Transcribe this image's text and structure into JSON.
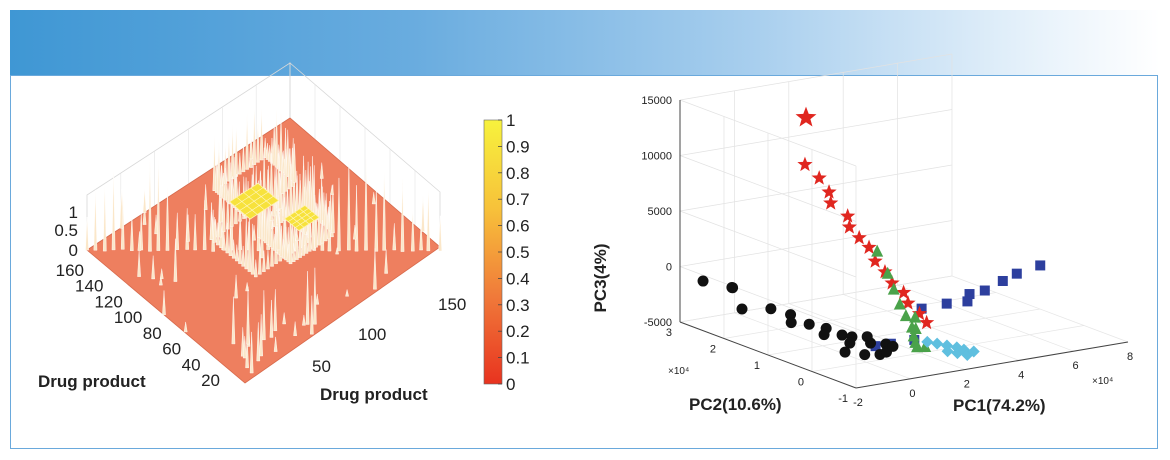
{
  "chart_data": [
    {
      "type": "heatmap",
      "style": "3d-surface",
      "x_axis_label": "Drug product",
      "y_axis_label": "Drug product",
      "x_ticks": [
        "50",
        "100",
        "150"
      ],
      "y_ticks": [
        "20",
        "40",
        "60",
        "80",
        "100",
        "120",
        "140",
        "160"
      ],
      "z_ticks": [
        "0",
        "0.5",
        "1"
      ],
      "zlim": [
        0,
        1
      ],
      "colorbar": {
        "ticks": [
          "0",
          "0.1",
          "0.2",
          "0.3",
          "0.4",
          "0.5",
          "0.6",
          "0.7",
          "0.8",
          "0.9",
          "1"
        ],
        "range": [
          0,
          1
        ],
        "colors": [
          "#e8331f",
          "#f07a3a",
          "#f7c23a",
          "#f7f23d"
        ]
      },
      "base_color": "#ee7f5f",
      "peak_color": "#fbe7c9",
      "block_color": "#f7e23c"
    },
    {
      "type": "scatter",
      "style": "3d",
      "x_axis_label": "PC1(74.2%)",
      "y_axis_label": "PC2(10.6%)",
      "z_axis_label": "PC3(4%)",
      "x_ticks": [
        "-2",
        "0",
        "2",
        "4",
        "6",
        "8"
      ],
      "y_ticks": [
        "-1",
        "0",
        "1",
        "2",
        "3"
      ],
      "z_ticks": [
        "-5000",
        "0",
        "5000",
        "10000",
        "15000"
      ],
      "x_exponent": "×10⁴",
      "y_exponent": "×10⁴",
      "xlim": [
        -2,
        8
      ],
      "ylim": [
        -1,
        3
      ],
      "zlim": [
        -5000,
        15000
      ],
      "series": [
        {
          "marker": "square",
          "color": "#2d3f9e",
          "points": [
            [
              7.2,
              0.5,
              0
            ],
            [
              6.5,
              0.6,
              -600
            ],
            [
              5.5,
              0.3,
              -400
            ],
            [
              5.0,
              0.4,
              -1200
            ],
            [
              4.6,
              0.5,
              -1500
            ],
            [
              4.2,
              0.3,
              -1700
            ],
            [
              3.6,
              0.4,
              -1800
            ],
            [
              3.0,
              0.6,
              -2300
            ],
            [
              1.6,
              -0.1,
              -3500
            ],
            [
              0.9,
              0.0,
              -3700
            ],
            [
              0.5,
              0.1,
              -3900
            ]
          ]
        },
        {
          "marker": "circle",
          "color": "#111111",
          "points": [
            [
              -1.8,
              2.6,
              -800
            ],
            [
              -1.2,
              2.3,
              -1200
            ],
            [
              -0.9,
              2.5,
              -1600
            ],
            [
              -1.5,
              1.9,
              -2400
            ],
            [
              -0.6,
              1.8,
              -2600
            ],
            [
              -0.2,
              1.6,
              -3000
            ],
            [
              -0.5,
              1.4,
              -3300
            ],
            [
              0.0,
              1.3,
              -3500
            ],
            [
              0.3,
              1.1,
              -3700
            ],
            [
              -0.1,
              0.9,
              -3800
            ],
            [
              0.4,
              0.8,
              -3900
            ],
            [
              0.6,
              0.7,
              -4000
            ],
            [
              0.2,
              0.5,
              -4100
            ],
            [
              0.8,
              0.4,
              -4200
            ],
            [
              1.0,
              0.6,
              -4000
            ],
            [
              1.2,
              0.3,
              -4300
            ],
            [
              -0.3,
              0.3,
              -4400
            ],
            [
              0.1,
              0.1,
              -4500
            ],
            [
              0.5,
              0.0,
              -4500
            ],
            [
              0.9,
              0.1,
              -4600
            ],
            [
              1.3,
              0.2,
              -4400
            ]
          ]
        },
        {
          "marker": "star",
          "color": "#e0261f",
          "points": [
            [
              1.5,
              2.3,
              13000
            ],
            [
              1.3,
              2.2,
              9000
            ],
            [
              1.5,
              2.0,
              8000
            ],
            [
              1.7,
              1.9,
              6800
            ],
            [
              1.6,
              1.8,
              6000
            ],
            [
              1.9,
              1.6,
              5000
            ],
            [
              1.8,
              1.5,
              4200
            ],
            [
              2.0,
              1.4,
              3300
            ],
            [
              2.2,
              1.3,
              2500
            ],
            [
              2.1,
              1.1,
              1600
            ],
            [
              2.3,
              1.0,
              700
            ],
            [
              2.4,
              0.9,
              -200
            ],
            [
              2.5,
              0.7,
              -800
            ],
            [
              2.5,
              0.6,
              -1600
            ],
            [
              2.6,
              0.4,
              -2300
            ],
            [
              2.7,
              0.3,
              -3000
            ]
          ]
        },
        {
          "marker": "triangle",
          "color": "#4aa24a",
          "points": [
            [
              2.5,
              1.3,
              2000
            ],
            [
              2.4,
              1.0,
              500
            ],
            [
              2.3,
              0.8,
              -600
            ],
            [
              2.2,
              0.6,
              -1600
            ],
            [
              2.1,
              0.4,
              -2300
            ],
            [
              2.0,
              0.2,
              -3000
            ],
            [
              1.9,
              0.1,
              -3600
            ],
            [
              1.8,
              0.0,
              -4000
            ],
            [
              2.3,
              0.3,
              -3400
            ],
            [
              2.6,
              0.5,
              -2800
            ],
            [
              1.7,
              -0.1,
              -4200
            ],
            [
              2.0,
              -0.1,
              -4300
            ]
          ]
        },
        {
          "marker": "diamond",
          "color": "#5fbfdf",
          "points": [
            [
              2.4,
              0.1,
              -4300
            ],
            [
              2.6,
              0.0,
              -4400
            ],
            [
              2.8,
              -0.1,
              -4500
            ],
            [
              3.0,
              -0.2,
              -4600
            ],
            [
              2.5,
              -0.3,
              -4600
            ],
            [
              2.7,
              -0.4,
              -4700
            ],
            [
              3.1,
              -0.3,
              -4700
            ],
            [
              2.9,
              -0.5,
              -4800
            ],
            [
              3.3,
              -0.4,
              -4800
            ]
          ]
        }
      ]
    }
  ]
}
